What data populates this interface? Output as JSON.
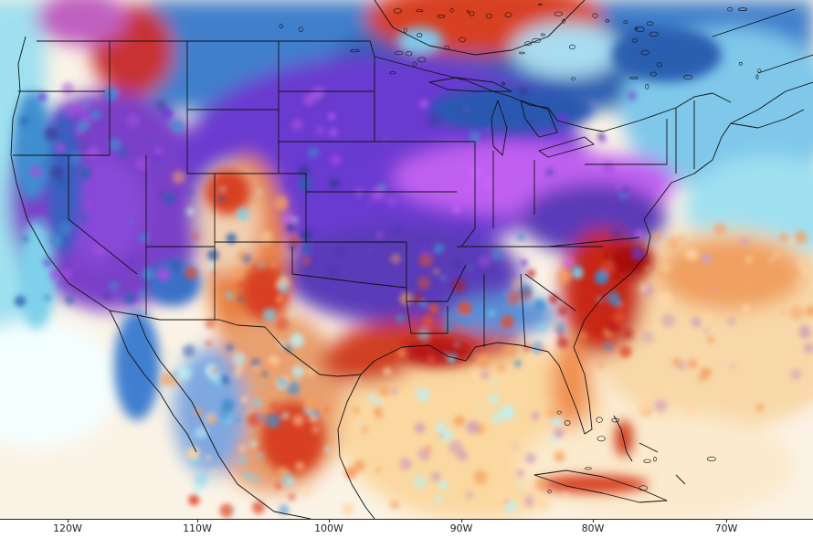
{
  "map": {
    "field_palette": [
      "#f4ffff",
      "#bff0f5",
      "#7fd0ea",
      "#3f8fd0",
      "#2c5fb0",
      "#3a3a9a",
      "#6a3ad0",
      "#a34fe0",
      "#cc66ff",
      "#d4a0b8",
      "#ffd8a8",
      "#f5a060",
      "#e05030",
      "#b81818",
      "#7a0000"
    ],
    "longitude_labels": [
      "120W",
      "110W",
      "100W",
      "90W",
      "80W",
      "70W"
    ],
    "background_color": "#ffffff",
    "border_color": "#111111"
  }
}
